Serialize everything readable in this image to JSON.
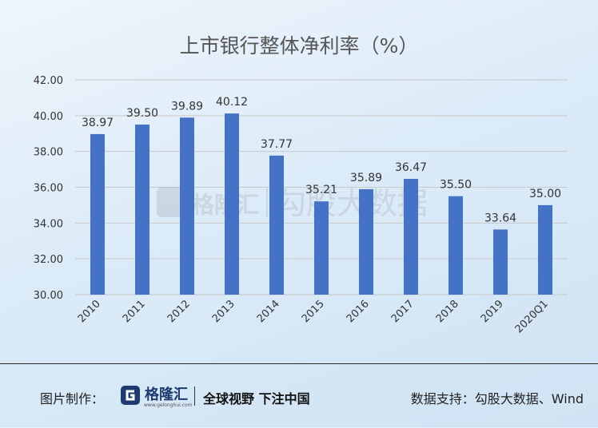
{
  "chart_data": {
    "type": "bar",
    "title": "上市银行整体净利率（%）",
    "categories": [
      "2010",
      "2011",
      "2012",
      "2013",
      "2014",
      "2015",
      "2016",
      "2017",
      "2018",
      "2019",
      "2020Q1"
    ],
    "values": [
      38.97,
      39.5,
      39.89,
      40.12,
      37.77,
      35.21,
      35.89,
      36.47,
      35.5,
      33.64,
      35.0
    ],
    "value_labels": [
      "38.97",
      "39.50",
      "39.89",
      "40.12",
      "37.77",
      "35.21",
      "35.89",
      "36.47",
      "35.50",
      "33.64",
      "35.00"
    ],
    "ylim": [
      30,
      42
    ],
    "yticks": [
      "30.00",
      "32.00",
      "34.00",
      "36.00",
      "38.00",
      "40.00",
      "42.00"
    ],
    "xlabel": "",
    "ylabel": "",
    "grid": true,
    "color": "#4472c4"
  },
  "watermark": {
    "brand": "格隆汇",
    "text": "勾股大数据"
  },
  "footer": {
    "made_by": "图片制作：",
    "logo_text": "格隆汇",
    "logo_url": "www.gelonghui.com",
    "slogan": "全球视野 下注中国",
    "source": "数据支持：勾股大数据、Wind"
  }
}
